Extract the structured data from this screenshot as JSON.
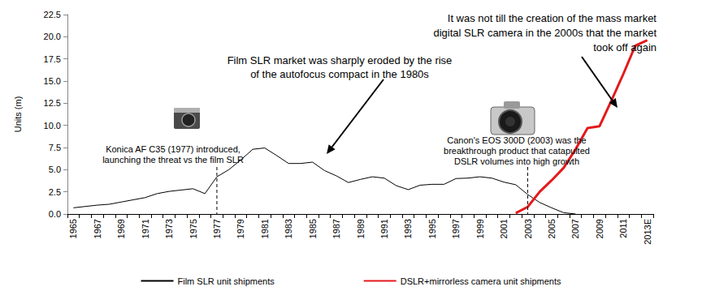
{
  "chart_data": {
    "type": "line",
    "y_label": "Units (m)",
    "categories": [
      "1965",
      null,
      "1967",
      null,
      "1969",
      null,
      "1971",
      null,
      "1973",
      null,
      "1975",
      null,
      "1977",
      null,
      "1979",
      null,
      "1981",
      null,
      "1983",
      null,
      "1985",
      null,
      "1987",
      null,
      "1989",
      null,
      "1991",
      null,
      "1993",
      null,
      "1995",
      null,
      "1997",
      null,
      "1999",
      null,
      "2001",
      null,
      "2003",
      null,
      "2005",
      null,
      "2007",
      null,
      "2009",
      null,
      "2011",
      null,
      "2013E"
    ],
    "series": [
      {
        "name": "Film SLR unit shipments",
        "color": "#000000",
        "values": [
          0.7,
          0.85,
          1.0,
          1.1,
          1.35,
          1.6,
          1.85,
          2.3,
          2.55,
          2.7,
          2.85,
          2.3,
          4.2,
          5.0,
          6.1,
          7.3,
          7.45,
          6.6,
          5.7,
          5.7,
          5.85,
          4.9,
          4.3,
          3.55,
          3.9,
          4.2,
          4.05,
          3.2,
          2.75,
          3.25,
          3.35,
          3.35,
          4.0,
          4.05,
          4.2,
          4.05,
          3.6,
          3.3,
          2.2,
          1.3,
          0.7,
          0.15,
          0.0,
          null,
          null,
          null,
          null,
          null,
          null
        ]
      },
      {
        "name": "DSLR+mirrorless camera unit shipments",
        "color": "#e31a1c",
        "values": [
          null,
          null,
          null,
          null,
          null,
          null,
          null,
          null,
          null,
          null,
          null,
          null,
          null,
          null,
          null,
          null,
          null,
          null,
          null,
          null,
          null,
          null,
          null,
          null,
          null,
          null,
          null,
          null,
          null,
          null,
          null,
          null,
          null,
          null,
          null,
          null,
          null,
          0.1,
          0.8,
          2.5,
          3.8,
          5.2,
          7.3,
          9.7,
          9.9,
          12.8,
          15.8,
          19.0,
          19.6
        ]
      }
    ],
    "ylim": [
      0,
      22.5
    ],
    "yticks": [
      {
        "value": 0,
        "label": "0.0"
      },
      2.5,
      {
        "value": 5,
        "label": "5.0"
      },
      7.5,
      {
        "value": 10,
        "label": "10.0"
      },
      12.5,
      {
        "value": 15,
        "label": "15.0"
      },
      17.5,
      {
        "value": 20,
        "label": "20.0"
      },
      22.5
    ],
    "grid": false,
    "legend": "bottom",
    "annotations": [
      {
        "text": "Konica AF C35 (1977) introduced,\nlaunching the threat vs the film SLR",
        "x": "1977"
      },
      {
        "text": "Film SLR market was sharply eroded by the rise\nof the autofocus compact in the 1980s"
      },
      {
        "text": "Canon's EOS 300D (2003) was the\nbreakthrough product that catapulted\nDSLR volumes into high growth",
        "x": "2003"
      },
      {
        "text": "It was not till the creation of the mass market\ndigital SLR camera in the 2000s that the market\ntook off again"
      }
    ]
  }
}
